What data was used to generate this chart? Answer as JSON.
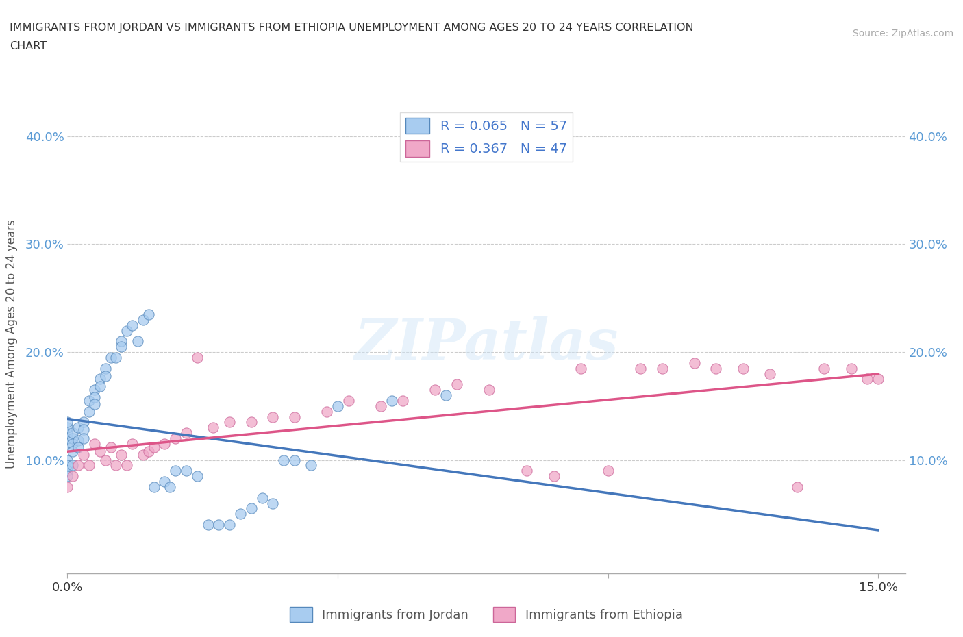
{
  "title": "IMMIGRANTS FROM JORDAN VS IMMIGRANTS FROM ETHIOPIA UNEMPLOYMENT AMONG AGES 20 TO 24 YEARS CORRELATION\nCHART",
  "source": "Source: ZipAtlas.com",
  "ylabel": "Unemployment Among Ages 20 to 24 years",
  "xlim": [
    0.0,
    0.155
  ],
  "ylim": [
    -0.005,
    0.42
  ],
  "jordan_color": "#a8ccf0",
  "ethiopia_color": "#f0a8c8",
  "jordan_edge": "#5588bb",
  "ethiopia_edge": "#cc6699",
  "jordan_line_color": "#4477bb",
  "ethiopia_line_color": "#dd5588",
  "R_jordan": 0.065,
  "N_jordan": 57,
  "R_ethiopia": 0.367,
  "N_ethiopia": 47,
  "jordan_x": [
    0.0,
    0.0,
    0.0,
    0.0,
    0.0,
    0.0,
    0.0,
    0.0,
    0.0,
    0.001,
    0.001,
    0.001,
    0.001,
    0.001,
    0.002,
    0.002,
    0.002,
    0.003,
    0.003,
    0.003,
    0.004,
    0.004,
    0.005,
    0.005,
    0.005,
    0.006,
    0.006,
    0.007,
    0.007,
    0.008,
    0.009,
    0.01,
    0.01,
    0.011,
    0.012,
    0.013,
    0.014,
    0.015,
    0.016,
    0.018,
    0.019,
    0.02,
    0.022,
    0.024,
    0.026,
    0.028,
    0.03,
    0.032,
    0.034,
    0.036,
    0.038,
    0.04,
    0.042,
    0.045,
    0.05,
    0.06,
    0.07
  ],
  "jordan_y": [
    0.115,
    0.12,
    0.125,
    0.13,
    0.135,
    0.1,
    0.095,
    0.09,
    0.085,
    0.12,
    0.115,
    0.125,
    0.108,
    0.095,
    0.13,
    0.118,
    0.112,
    0.135,
    0.128,
    0.12,
    0.155,
    0.145,
    0.165,
    0.158,
    0.152,
    0.175,
    0.168,
    0.185,
    0.178,
    0.195,
    0.195,
    0.21,
    0.205,
    0.22,
    0.225,
    0.21,
    0.23,
    0.235,
    0.075,
    0.08,
    0.075,
    0.09,
    0.09,
    0.085,
    0.04,
    0.04,
    0.04,
    0.05,
    0.055,
    0.065,
    0.06,
    0.1,
    0.1,
    0.095,
    0.15,
    0.155,
    0.16
  ],
  "ethiopia_x": [
    0.0,
    0.001,
    0.002,
    0.003,
    0.004,
    0.005,
    0.006,
    0.007,
    0.008,
    0.009,
    0.01,
    0.011,
    0.012,
    0.014,
    0.015,
    0.016,
    0.018,
    0.02,
    0.022,
    0.024,
    0.027,
    0.03,
    0.034,
    0.038,
    0.042,
    0.048,
    0.052,
    0.058,
    0.062,
    0.068,
    0.072,
    0.078,
    0.085,
    0.09,
    0.095,
    0.1,
    0.106,
    0.11,
    0.116,
    0.12,
    0.125,
    0.13,
    0.135,
    0.14,
    0.145,
    0.148,
    0.15
  ],
  "ethiopia_y": [
    0.075,
    0.085,
    0.095,
    0.105,
    0.095,
    0.115,
    0.108,
    0.1,
    0.112,
    0.095,
    0.105,
    0.095,
    0.115,
    0.105,
    0.108,
    0.112,
    0.115,
    0.12,
    0.125,
    0.195,
    0.13,
    0.135,
    0.135,
    0.14,
    0.14,
    0.145,
    0.155,
    0.15,
    0.155,
    0.165,
    0.17,
    0.165,
    0.09,
    0.085,
    0.185,
    0.09,
    0.185,
    0.185,
    0.19,
    0.185,
    0.185,
    0.18,
    0.075,
    0.185,
    0.185,
    0.175,
    0.175
  ]
}
